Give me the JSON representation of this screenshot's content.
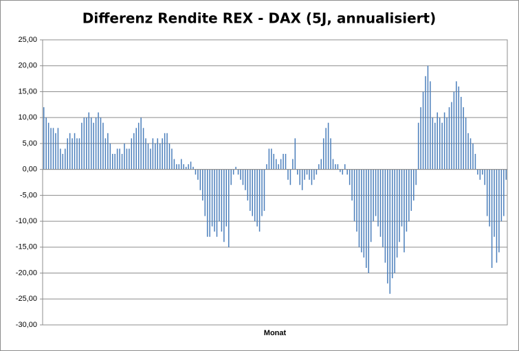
{
  "chart_data": {
    "type": "bar",
    "title": "Differenz Rendite REX - DAX (5J, annualisiert)",
    "x_label": "Monat",
    "color": "#4a7ebb",
    "grid": true,
    "ylim": [
      -30,
      25
    ],
    "yticks": [
      {
        "value": -30,
        "label": "-30,00"
      },
      {
        "value": -25,
        "label": "-25,00"
      },
      {
        "value": -20,
        "label": "-20,00"
      },
      {
        "value": -15,
        "label": "-15,00"
      },
      {
        "value": -10,
        "label": "-10,00"
      },
      {
        "value": -5,
        "label": "-5,00"
      },
      {
        "value": 0,
        "label": "0,00"
      },
      {
        "value": 5,
        "label": "5,00"
      },
      {
        "value": 10,
        "label": "10,00"
      },
      {
        "value": 15,
        "label": "15,00"
      },
      {
        "value": 20,
        "label": "20,00"
      },
      {
        "value": 25,
        "label": "25,00"
      }
    ],
    "categories": [
      null,
      null,
      null,
      null,
      null,
      null,
      null,
      null,
      null,
      null,
      null,
      null,
      null,
      null,
      null,
      null,
      null,
      null,
      null,
      null,
      null,
      null,
      null,
      null,
      null,
      null,
      null,
      null,
      null,
      null,
      null,
      null,
      null,
      null,
      null,
      null,
      null,
      null,
      null,
      null,
      null,
      null,
      null,
      null,
      null,
      null,
      null,
      null,
      null,
      null,
      null,
      null,
      null,
      null,
      null,
      null,
      null,
      null,
      null,
      null,
      null,
      null,
      null,
      null,
      null,
      null,
      null,
      null,
      null,
      null,
      null,
      null,
      null,
      null,
      null,
      null,
      null,
      null,
      null,
      null,
      null,
      null,
      null,
      null,
      null,
      null,
      null,
      null,
      null,
      null,
      null,
      null,
      null,
      null,
      null,
      null,
      null,
      null,
      null,
      null,
      null,
      null,
      null,
      null,
      null,
      null,
      null,
      null,
      null,
      null,
      null,
      null,
      null,
      null,
      null,
      null,
      null,
      null,
      null,
      null,
      null,
      null,
      null,
      null,
      null,
      null,
      null,
      null,
      null,
      null,
      null,
      null,
      null,
      null,
      null,
      null,
      null,
      null,
      null,
      null,
      null,
      null,
      null,
      null,
      null,
      null,
      null,
      null,
      null,
      null,
      null,
      null,
      null,
      null,
      null,
      null,
      null,
      null,
      null,
      null,
      null,
      null,
      null,
      null,
      null,
      null,
      null,
      null,
      null,
      null,
      null,
      null,
      null,
      null,
      null,
      null,
      null,
      null,
      null,
      null,
      null,
      null,
      null,
      null,
      null,
      null,
      null,
      null,
      null,
      null,
      null,
      null,
      null,
      null,
      null,
      null
    ],
    "values": [
      12,
      10,
      9,
      8,
      8,
      7,
      8,
      4,
      3,
      4,
      6,
      7,
      6,
      7,
      6,
      6,
      9,
      10,
      10,
      11,
      10,
      9,
      10,
      11,
      10,
      9,
      6,
      7,
      5,
      3,
      3,
      4,
      4,
      3,
      5,
      4,
      4,
      6,
      7,
      8,
      9,
      10,
      8,
      6,
      5,
      4,
      6,
      5,
      6,
      5,
      6,
      7,
      7,
      5,
      4,
      2,
      1,
      1,
      2,
      1,
      0.5,
      1,
      1.5,
      0.5,
      -1,
      -2,
      -4,
      -6,
      -9,
      -13,
      -13,
      -11,
      -12,
      -13,
      -10,
      -12,
      -14,
      -11,
      -15,
      -3,
      -1,
      0.5,
      -1,
      -2,
      -3,
      -4,
      -6,
      -8,
      -9,
      -10,
      -11,
      -12,
      -9,
      -8,
      1,
      4,
      4,
      3,
      2,
      1,
      2,
      3,
      3,
      -2,
      -3,
      2,
      6,
      -1,
      -3,
      -4,
      -2,
      -1,
      -2,
      -3,
      -2,
      -1,
      1,
      2,
      6,
      8,
      9,
      6,
      2,
      1,
      1,
      -0.5,
      -1,
      1,
      -1,
      -3,
      -6,
      -10,
      -12,
      -15,
      -16,
      -17,
      -19,
      -20,
      -14,
      -10,
      -9,
      -11,
      -13,
      -15,
      -18,
      -22,
      -24,
      -21,
      -20,
      -17,
      -14,
      -11,
      -16,
      -12,
      -10,
      -8,
      -6,
      -3,
      9,
      12,
      15,
      18,
      20,
      17,
      10,
      9,
      11,
      10,
      9,
      11,
      10,
      12,
      13,
      15,
      17,
      16,
      14,
      12,
      10,
      7,
      6,
      5,
      3,
      -1,
      -2,
      -1,
      -3,
      -9,
      -11,
      -19,
      -13,
      -18,
      -16,
      -10,
      -9,
      -2
    ]
  }
}
